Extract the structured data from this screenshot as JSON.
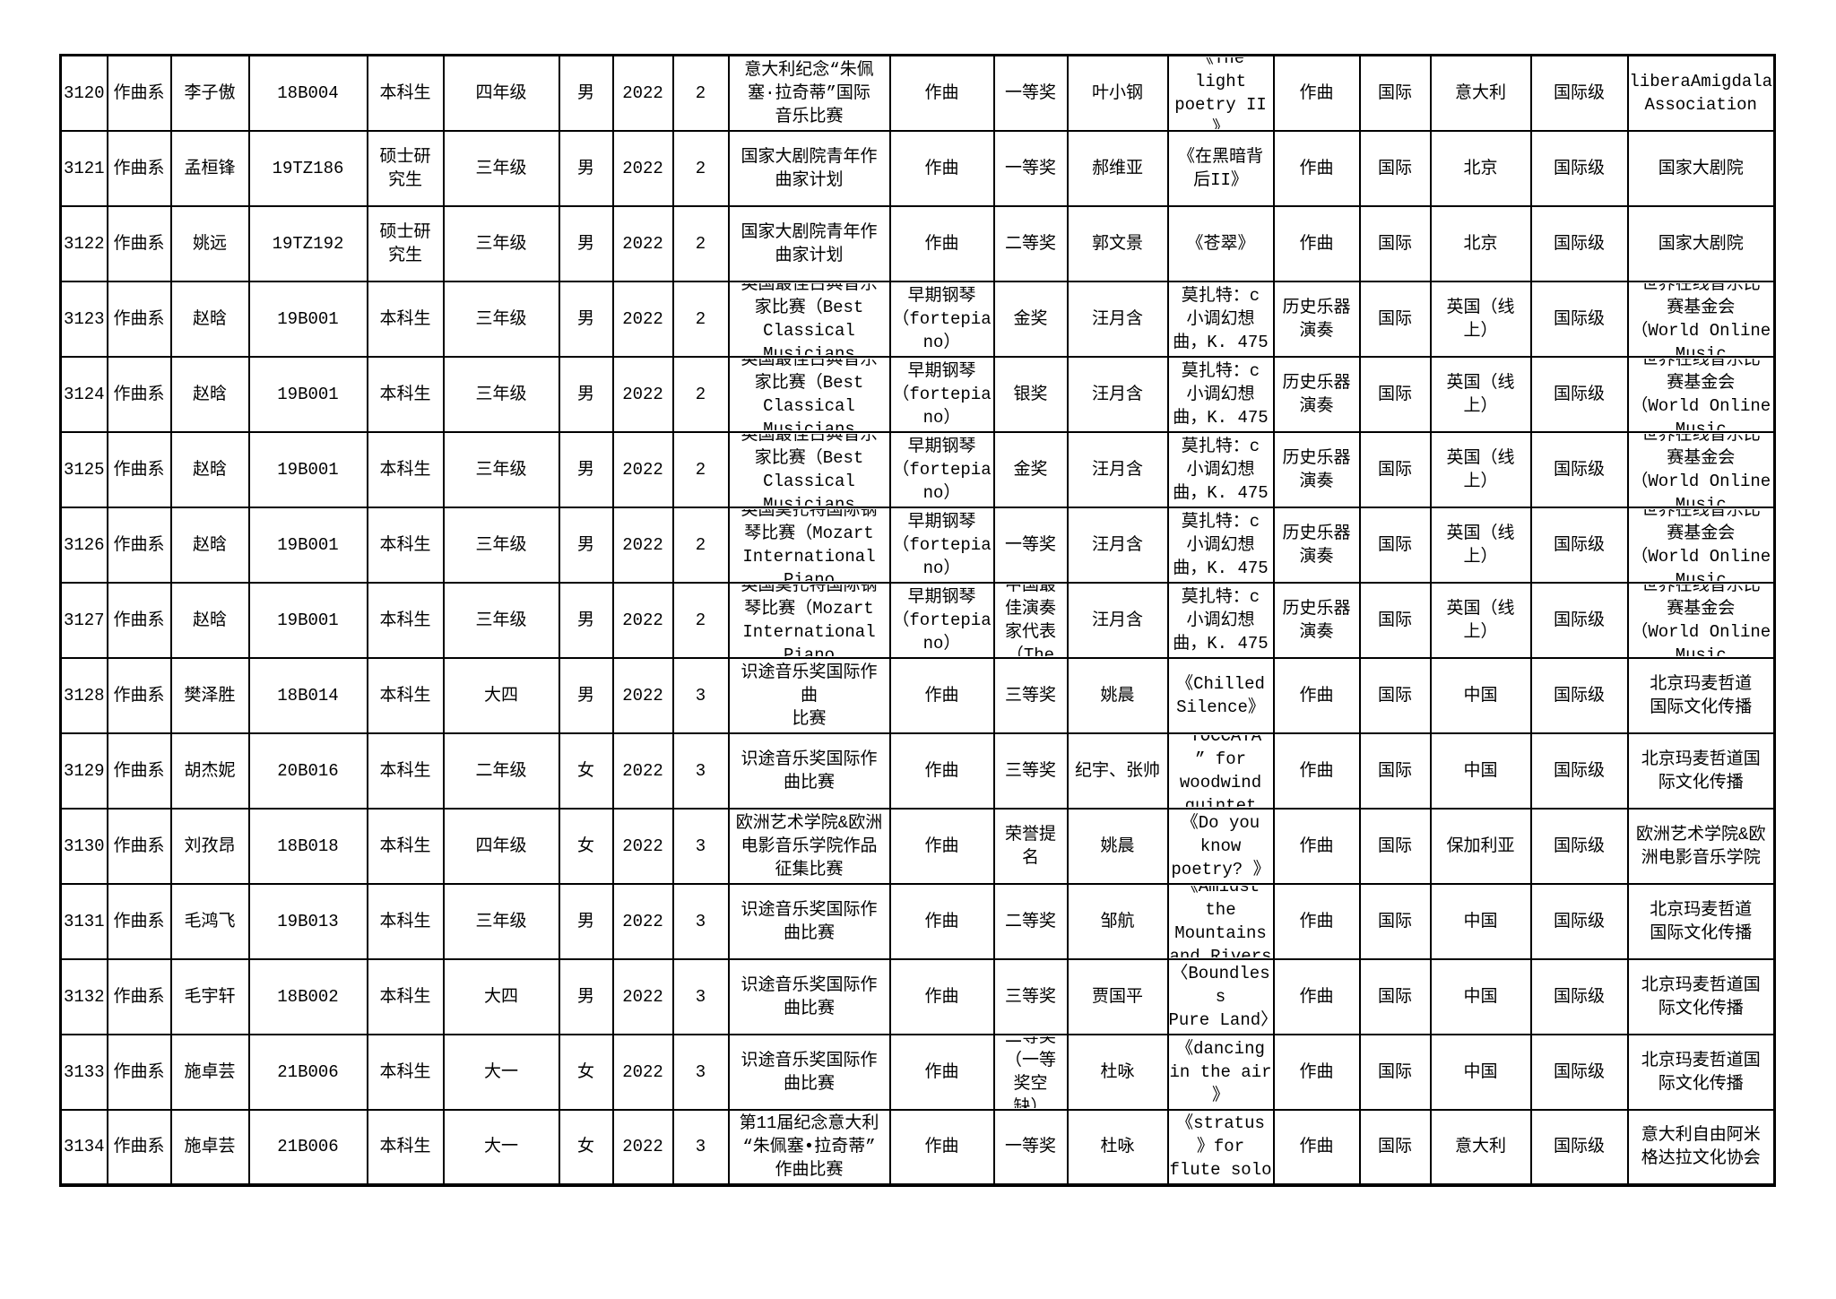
{
  "page": {
    "background_color": "#ffffff",
    "border_color": "#000000",
    "text_color": "#000000"
  },
  "table": {
    "rows": [
      [
        "3120",
        "作曲系",
        "李子傲",
        "18B004",
        "本科生",
        "四年级",
        "男",
        "2022",
        "2",
        "意大利纪念“朱佩\n塞·拉奇蒂”国际\n音乐比赛",
        "作曲",
        "一等奖",
        "叶小钢",
        "《The\nlight\npoetry II\n》",
        "作曲",
        "国际",
        "意大利",
        "国际级",
        "liberaAmigdala\nAssociation"
      ],
      [
        "3121",
        "作曲系",
        "孟桓锋",
        "19TZ186",
        "硕士研\n究生",
        "三年级",
        "男",
        "2022",
        "2",
        "国家大剧院青年作\n曲家计划",
        "作曲",
        "一等奖",
        "郝维亚",
        "《在黑暗背\n后II》",
        "作曲",
        "国际",
        "北京",
        "国际级",
        "国家大剧院"
      ],
      [
        "3122",
        "作曲系",
        "姚远",
        "19TZ192",
        "硕士研\n究生",
        "三年级",
        "男",
        "2022",
        "2",
        "国家大剧院青年作\n曲家计划",
        "作曲",
        "二等奖",
        "郭文景",
        "《苍翠》",
        "作曲",
        "国际",
        "北京",
        "国际级",
        "国家大剧院"
      ],
      [
        "3123",
        "作曲系",
        "赵晗",
        "19B001",
        "本科生",
        "三年级",
        "男",
        "2022",
        "2",
        "英国最佳古典音乐\n家比赛（Best\nClassical\nMusicians",
        "早期钢琴\n（fortepia\nno）",
        "金奖",
        "汪月含",
        "莫扎特：c\n小调幻想\n曲，K. 475",
        "历史乐器\n演奏",
        "国际",
        "英国（线\n上）",
        "国际级",
        "世界在线音乐比\n赛基金会\n（World Online\nMusic"
      ],
      [
        "3124",
        "作曲系",
        "赵晗",
        "19B001",
        "本科生",
        "三年级",
        "男",
        "2022",
        "2",
        "英国最佳古典音乐\n家比赛（Best\nClassical\nMusicians",
        "早期钢琴\n（fortepia\nno）",
        "银奖",
        "汪月含",
        "莫扎特：c\n小调幻想\n曲，K. 475",
        "历史乐器\n演奏",
        "国际",
        "英国（线\n上）",
        "国际级",
        "世界在线音乐比\n赛基金会\n（World Online\nMusic"
      ],
      [
        "3125",
        "作曲系",
        "赵晗",
        "19B001",
        "本科生",
        "三年级",
        "男",
        "2022",
        "2",
        "英国最佳古典音乐\n家比赛（Best\nClassical\nMusicians",
        "早期钢琴\n（fortepia\nno）",
        "金奖",
        "汪月含",
        "莫扎特：c\n小调幻想\n曲，K. 475",
        "历史乐器\n演奏",
        "国际",
        "英国（线\n上）",
        "国际级",
        "世界在线音乐比\n赛基金会\n（World Online\nMusic"
      ],
      [
        "3126",
        "作曲系",
        "赵晗",
        "19B001",
        "本科生",
        "三年级",
        "男",
        "2022",
        "2",
        "英国莫扎特国际钢\n琴比赛（Mozart\nInternational\nPiano",
        "早期钢琴\n（fortepia\nno）",
        "一等奖",
        "汪月含",
        "莫扎特：c\n小调幻想\n曲，K. 475",
        "历史乐器\n演奏",
        "国际",
        "英国（线\n上）",
        "国际级",
        "世界在线音乐比\n赛基金会\n（World Online\nMusic"
      ],
      [
        "3127",
        "作曲系",
        "赵晗",
        "19B001",
        "本科生",
        "三年级",
        "男",
        "2022",
        "2",
        "英国莫扎特国际钢\n琴比赛（Mozart\nInternational\nPiano",
        "早期钢琴\n（fortepia\nno）",
        "中国最\n佳演奏\n家代表\n（The",
        "汪月含",
        "莫扎特：c\n小调幻想\n曲，K. 475",
        "历史乐器\n演奏",
        "国际",
        "英国（线\n上）",
        "国际级",
        "世界在线音乐比\n赛基金会\n（World Online\nMusic"
      ],
      [
        "3128",
        "作曲系",
        "樊泽胜",
        "18B014",
        "本科生",
        "大四",
        "男",
        "2022",
        "3",
        "识途音乐奖国际作\n曲\n比赛",
        "作曲",
        "三等奖",
        "姚晨",
        "《Chilled\nSilence》",
        "作曲",
        "国际",
        "中国",
        "国际级",
        "北京玛麦哲道\n国际文化传播"
      ],
      [
        "3129",
        "作曲系",
        "胡杰妮",
        "20B016",
        "本科生",
        "二年级",
        "女",
        "2022",
        "3",
        "识途音乐奖国际作\n曲比赛",
        "作曲",
        "三等奖",
        "纪宇、张帅",
        "“TOCCATA\n” for\nwoodwind\nquintet",
        "作曲",
        "国际",
        "中国",
        "国际级",
        "北京玛麦哲道国\n际文化传播"
      ],
      [
        "3130",
        "作曲系",
        "刘孜昂",
        "18B018",
        "本科生",
        "四年级",
        "女",
        "2022",
        "3",
        "欧洲艺术学院&欧洲\n电影音乐学院作品\n征集比赛",
        "作曲",
        "荣誉提\n名",
        "姚晨",
        "《Do you\nknow\npoetry? 》",
        "作曲",
        "国际",
        "保加利亚",
        "国际级",
        "欧洲艺术学院&欧\n洲电影音乐学院"
      ],
      [
        "3131",
        "作曲系",
        "毛鸿飞",
        "19B013",
        "本科生",
        "三年级",
        "男",
        "2022",
        "3",
        "识途音乐奖国际作\n曲比赛",
        "作曲",
        "二等奖",
        "邹航",
        "《Amidst\nthe\nMountains\nand Rivers",
        "作曲",
        "国际",
        "中国",
        "国际级",
        "北京玛麦哲道\n国际文化传播"
      ],
      [
        "3132",
        "作曲系",
        "毛宇轩",
        "18B002",
        "本科生",
        "大四",
        "男",
        "2022",
        "3",
        "识途音乐奖国际作\n曲比赛",
        "作曲",
        "三等奖",
        "贾国平",
        "〈Boundless\nPure Land〉",
        "作曲",
        "国际",
        "中国",
        "国际级",
        "北京玛麦哲道国\n际文化传播"
      ],
      [
        "3133",
        "作曲系",
        "施卓芸",
        "21B006",
        "本科生",
        "大一",
        "女",
        "2022",
        "3",
        "识途音乐奖国际作\n曲比赛",
        "作曲",
        "二等奖\n（一等\n奖空\n缺）",
        "杜咏",
        "《dancing\nin the air\n》",
        "作曲",
        "国际",
        "中国",
        "国际级",
        "北京玛麦哲道国\n际文化传播"
      ],
      [
        "3134",
        "作曲系",
        "施卓芸",
        "21B006",
        "本科生",
        "大一",
        "女",
        "2022",
        "3",
        "第11届纪念意大利\n“朱佩塞•拉奇蒂”\n作曲比赛",
        "作曲",
        "一等奖",
        "杜咏",
        "《stratus\n》for\nflute solo",
        "作曲",
        "国际",
        "意大利",
        "国际级",
        "意大利自由阿米\n格达拉文化协会"
      ]
    ]
  }
}
